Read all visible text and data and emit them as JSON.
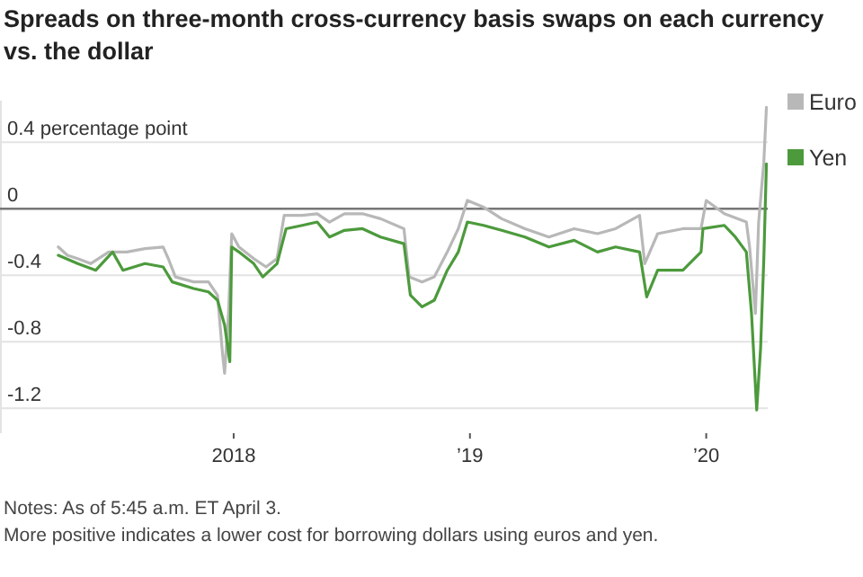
{
  "chart_data": {
    "type": "line",
    "title": "Spreads on three-month cross-currency basis swaps on each currency vs. the dollar",
    "xlim": [
      "2017-01-05",
      "2020-04-05"
    ],
    "xticks": [
      {
        "value": "2018-01-01",
        "label": "2018"
      },
      {
        "value": "2019-01-01",
        "label": "’19"
      },
      {
        "value": "2020-01-01",
        "label": "’20"
      }
    ],
    "ylim": [
      -1.35,
      0.65
    ],
    "yticks": [
      {
        "value": 0.4,
        "label": "0.4 percentage point"
      },
      0,
      -0.4,
      -0.8,
      -1.2
    ],
    "grid": "y",
    "legend": "top right",
    "line_style": "solid",
    "marker": "none",
    "ref_lines": [
      {
        "axis": "y",
        "value": 0,
        "color": "#777777"
      }
    ],
    "annotations": [
      "Notes: As of 5:45 a.m. ET April 3.",
      "More positive indicates a lower cost for borrowing dollars using euros and yen."
    ],
    "series": [
      {
        "name": "Euro",
        "color": "#b8b8b8",
        "x": [
          "2017-04-05",
          "2017-04-19",
          "2017-05-05",
          "2017-05-25",
          "2017-06-22",
          "2017-07-20",
          "2017-08-17",
          "2017-09-14",
          "2017-09-22",
          "2017-10-03",
          "2017-10-31",
          "2017-11-23",
          "2017-12-07",
          "2017-12-15",
          "2017-12-18",
          "2017-12-24",
          "2017-12-29",
          "2018-01-09",
          "2018-02-01",
          "2018-02-20",
          "2018-03-09",
          "2018-03-20",
          "2018-04-17",
          "2018-05-10",
          "2018-05-29",
          "2018-06-21",
          "2018-07-19",
          "2018-08-16",
          "2018-09-21",
          "2018-09-29",
          "2018-10-19",
          "2018-11-07",
          "2018-11-27",
          "2018-12-14",
          "2018-12-28",
          "2019-01-22",
          "2019-02-19",
          "2019-03-27",
          "2019-05-03",
          "2019-06-11",
          "2019-07-17",
          "2019-08-14",
          "2019-09-20",
          "2019-09-28",
          "2019-10-18",
          "2019-11-26",
          "2019-12-24",
          "2020-01-01",
          "2020-01-29",
          "2020-03-03",
          "2020-03-08",
          "2020-03-17",
          "2020-03-22",
          "2020-03-30",
          "2020-04-03"
        ],
        "values": [
          -0.23,
          -0.28,
          -0.3,
          -0.33,
          -0.26,
          -0.26,
          -0.24,
          -0.23,
          -0.3,
          -0.41,
          -0.44,
          -0.44,
          -0.52,
          -0.88,
          -0.99,
          -0.63,
          -0.15,
          -0.23,
          -0.3,
          -0.35,
          -0.3,
          -0.04,
          -0.04,
          -0.03,
          -0.08,
          -0.03,
          -0.03,
          -0.06,
          -0.12,
          -0.41,
          -0.44,
          -0.41,
          -0.26,
          -0.12,
          0.05,
          0.01,
          -0.06,
          -0.12,
          -0.17,
          -0.12,
          -0.15,
          -0.12,
          -0.04,
          -0.33,
          -0.15,
          -0.12,
          -0.12,
          0.05,
          -0.03,
          -0.08,
          -0.23,
          -0.63,
          -0.08,
          0.28,
          0.61
        ]
      },
      {
        "name": "Yen",
        "color": "#4c9a3c",
        "x": [
          "2017-04-05",
          "2017-05-05",
          "2017-06-02",
          "2017-06-28",
          "2017-07-14",
          "2017-08-17",
          "2017-09-14",
          "2017-09-28",
          "2017-10-31",
          "2017-11-23",
          "2017-12-07",
          "2017-12-18",
          "2017-12-26",
          "2017-12-29",
          "2018-01-09",
          "2018-02-01",
          "2018-02-15",
          "2018-03-09",
          "2018-03-23",
          "2018-04-17",
          "2018-05-10",
          "2018-05-29",
          "2018-06-21",
          "2018-07-19",
          "2018-08-16",
          "2018-09-21",
          "2018-10-01",
          "2018-10-19",
          "2018-11-07",
          "2018-11-27",
          "2018-12-14",
          "2018-12-28",
          "2019-01-22",
          "2019-02-19",
          "2019-03-27",
          "2019-05-03",
          "2019-06-11",
          "2019-07-17",
          "2019-08-14",
          "2019-09-20",
          "2019-10-01",
          "2019-10-18",
          "2019-11-26",
          "2019-12-24",
          "2019-12-27",
          "2020-01-29",
          "2020-02-15",
          "2020-03-03",
          "2020-03-11",
          "2020-03-19",
          "2020-03-25",
          "2020-03-30",
          "2020-04-03"
        ],
        "values": [
          -0.28,
          -0.33,
          -0.37,
          -0.26,
          -0.37,
          -0.33,
          -0.35,
          -0.44,
          -0.48,
          -0.5,
          -0.55,
          -0.7,
          -0.92,
          -0.23,
          -0.26,
          -0.33,
          -0.41,
          -0.33,
          -0.12,
          -0.1,
          -0.08,
          -0.17,
          -0.13,
          -0.12,
          -0.17,
          -0.21,
          -0.52,
          -0.59,
          -0.55,
          -0.37,
          -0.26,
          -0.08,
          -0.1,
          -0.13,
          -0.17,
          -0.23,
          -0.19,
          -0.26,
          -0.23,
          -0.26,
          -0.53,
          -0.37,
          -0.37,
          -0.26,
          -0.12,
          -0.1,
          -0.17,
          -0.26,
          -0.63,
          -1.21,
          -0.84,
          -0.3,
          0.27
        ]
      }
    ]
  }
}
